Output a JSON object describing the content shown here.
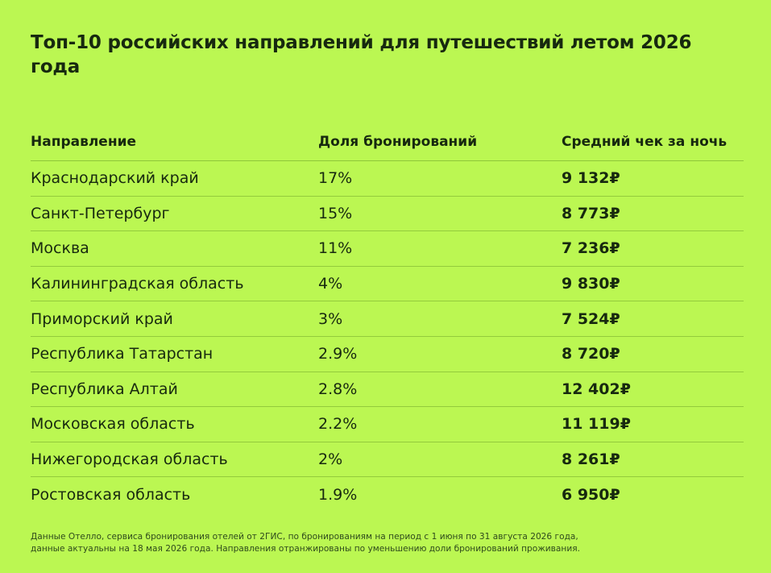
{
  "title": "Топ-10 российских направлений для путешествий летом 2026 года",
  "table": {
    "headers": {
      "destination": "Направление",
      "share": "Доля бронирований",
      "price": "Средний чек за ночь"
    },
    "rows": [
      {
        "destination": "Краснодарский край",
        "share": "17%",
        "price": "9 132₽"
      },
      {
        "destination": "Санкт-Петербург",
        "share": "15%",
        "price": "8 773₽"
      },
      {
        "destination": "Москва",
        "share": "11%",
        "price": "7 236₽"
      },
      {
        "destination": "Калининградская область",
        "share": "4%",
        "price": "9 830₽"
      },
      {
        "destination": "Приморский край",
        "share": "3%",
        "price": "7 524₽"
      },
      {
        "destination": "Республика Татарстан",
        "share": "2.9%",
        "price": "8 720₽"
      },
      {
        "destination": "Республика Алтай",
        "share": "2.8%",
        "price": "12 402₽"
      },
      {
        "destination": "Московская область",
        "share": "2.2%",
        "price": "11 119₽"
      },
      {
        "destination": "Нижегородская область",
        "share": "2%",
        "price": "8 261₽"
      },
      {
        "destination": "Ростовская область",
        "share": "1.9%",
        "price": "6 950₽"
      }
    ]
  },
  "footnote": {
    "line1": "Данные Отелло, сервиса бронирования отелей от 2ГИС, по бронированиям на период с 1 июня по 31 августа 2026 года,",
    "line2": "данные актуальны на 18 мая 2026 года. Направления отранжированы по уменьшению доли бронирований проживания."
  },
  "colors": {
    "background": "#bbf752",
    "text": "#17290f",
    "divider": "#93cb3c"
  }
}
